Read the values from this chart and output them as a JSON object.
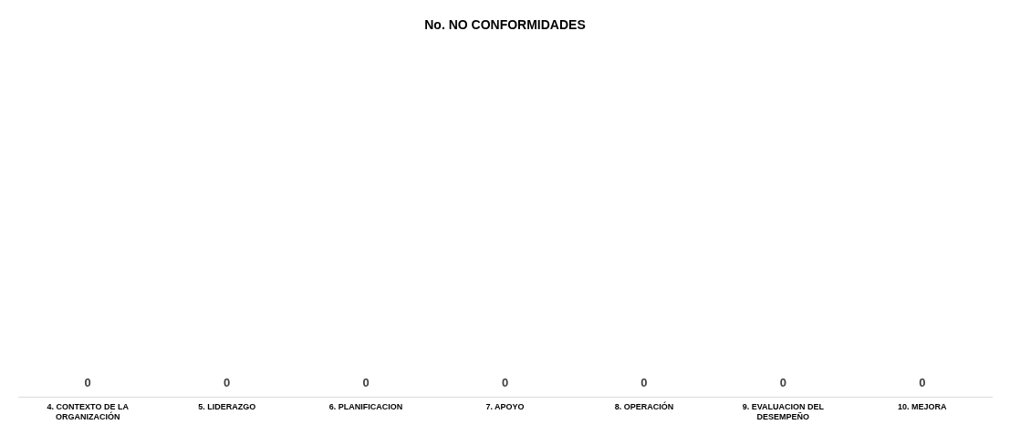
{
  "chart_data": {
    "type": "other",
    "title": "No. NO CONFORMIDADES",
    "categories": [
      "4. CONTEXTO DE LA ORGANIZACIÓN",
      "5. LIDERAZGO",
      "6. PLANIFICACION",
      "7. APOYO",
      "8. OPERACIÓN",
      "9. EVALUACION DEL DESEMPEÑO",
      "10. MEJORA"
    ],
    "values": [
      0,
      0,
      0,
      0,
      0,
      0,
      0
    ],
    "data_labels": true,
    "legend": false
  }
}
